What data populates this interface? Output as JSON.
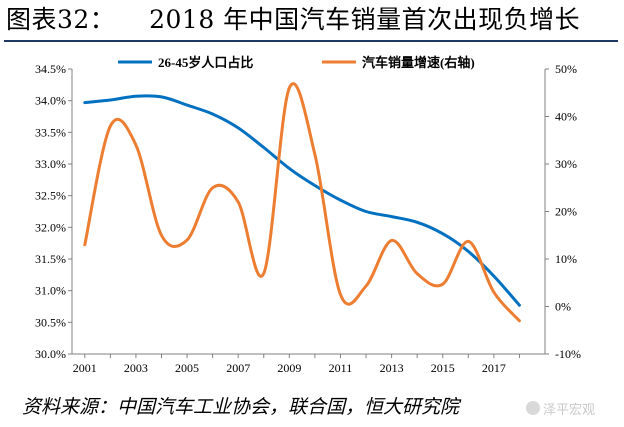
{
  "header": {
    "title": "图表32：    2018 年中国汽车销量首次出现负增长"
  },
  "footer": {
    "source": "资料来源：中国汽车工业协会，联合国，恒大研究院",
    "watermark": "泽平宏观"
  },
  "colors": {
    "population": "#0070c0",
    "sales": "#ed7d31",
    "axis": "#808080"
  },
  "chart_data": {
    "type": "line",
    "title": "",
    "xlabel": "",
    "ylabel": "",
    "x_ticks": [
      "2001",
      "2003",
      "2005",
      "2007",
      "2009",
      "2011",
      "2013",
      "2015",
      "2017"
    ],
    "xlim": [
      2000.5,
      2019
    ],
    "ylim": [
      30.0,
      34.5
    ],
    "y2lim": [
      -10,
      50
    ],
    "y_ticks": [
      "30.0%",
      "30.5%",
      "31.0%",
      "31.5%",
      "32.0%",
      "32.5%",
      "33.0%",
      "33.5%",
      "34.0%",
      "34.5%"
    ],
    "y2_ticks": [
      "-10%",
      "0%",
      "10%",
      "20%",
      "30%",
      "40%",
      "50%"
    ],
    "legend_position": "top",
    "grid": false,
    "series": [
      {
        "name": "26-45岁人口占比",
        "axis": "left",
        "x": [
          2001,
          2002,
          2003,
          2004,
          2005,
          2006,
          2007,
          2008,
          2009,
          2010,
          2011,
          2012,
          2013,
          2014,
          2015,
          2016,
          2017,
          2018
        ],
        "values": [
          33.97,
          34.01,
          34.07,
          34.06,
          33.93,
          33.79,
          33.57,
          33.26,
          32.93,
          32.66,
          32.43,
          32.25,
          32.17,
          32.08,
          31.9,
          31.62,
          31.23,
          30.77
        ]
      },
      {
        "name": "汽车销量增速(右轴)",
        "axis": "right",
        "x": [
          2001,
          2002,
          2003,
          2004,
          2005,
          2006,
          2007,
          2008,
          2009,
          2010,
          2011,
          2012,
          2013,
          2014,
          2015,
          2016,
          2017,
          2018
        ],
        "values": [
          13,
          38,
          34,
          15,
          14,
          25,
          22,
          7,
          46,
          32,
          2.5,
          4.3,
          13.9,
          6.9,
          4.7,
          13.7,
          3,
          -3
        ]
      }
    ]
  }
}
